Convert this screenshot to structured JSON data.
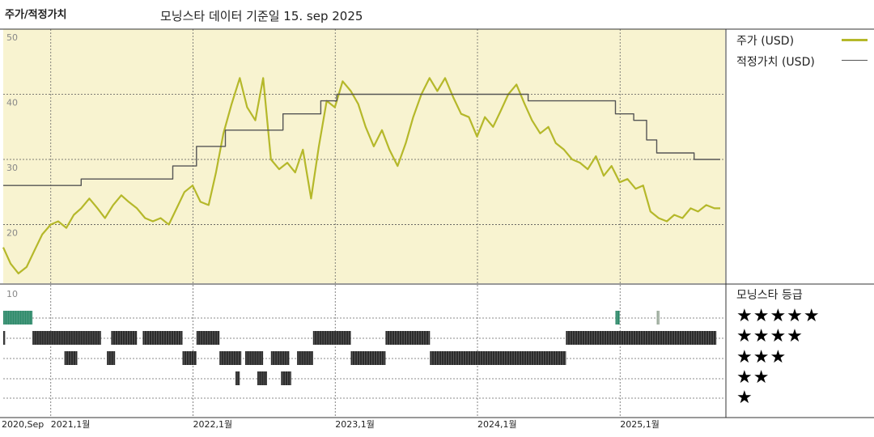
{
  "header": {
    "title": "주가/적정가치",
    "subtitle": "모닝스타 데이터 기준일 15. sep 2025"
  },
  "legend": {
    "price_label": "주가 (USD)",
    "fair_label": "적정가치 (USD)",
    "price_color": "#b5b82a",
    "fair_color": "#555555"
  },
  "rating_panel": {
    "title": "모닝스타 등급",
    "rows": [
      "★★★★★",
      "★★★★",
      "★★★",
      "★★",
      "★"
    ]
  },
  "chart_data": {
    "type": "line",
    "y_ticks": [
      "50",
      "40",
      "30",
      "20"
    ],
    "y_range": [
      11,
      50
    ],
    "x_range": [
      "2020-09-01",
      "2025-09-15"
    ],
    "x_ticks": [
      {
        "date": "2020-09-01",
        "label": "2020,Sep"
      },
      {
        "date": "2021-01-01",
        "label": "2021,1월"
      },
      {
        "date": "2022-01-01",
        "label": "2022,1월"
      },
      {
        "date": "2023-01-01",
        "label": "2023,1월"
      },
      {
        "date": "2024-01-01",
        "label": "2024,1월"
      },
      {
        "date": "2025-01-01",
        "label": "2025,1월"
      }
    ],
    "rating_axis_label": "10",
    "series": [
      {
        "name": "주가 (USD)",
        "points": [
          [
            "2020-09-01",
            16.5
          ],
          [
            "2020-09-20",
            14.0
          ],
          [
            "2020-10-10",
            12.5
          ],
          [
            "2020-10-31",
            13.5
          ],
          [
            "2020-11-20",
            16.0
          ],
          [
            "2020-12-10",
            18.5
          ],
          [
            "2021-01-01",
            20.0
          ],
          [
            "2021-01-20",
            20.5
          ],
          [
            "2021-02-10",
            19.5
          ],
          [
            "2021-03-01",
            21.5
          ],
          [
            "2021-03-20",
            22.5
          ],
          [
            "2021-04-10",
            24.0
          ],
          [
            "2021-05-01",
            22.5
          ],
          [
            "2021-05-20",
            21.0
          ],
          [
            "2021-06-10",
            23.0
          ],
          [
            "2021-07-01",
            24.5
          ],
          [
            "2021-07-20",
            23.5
          ],
          [
            "2021-08-10",
            22.5
          ],
          [
            "2021-08-31",
            21.0
          ],
          [
            "2021-09-20",
            20.5
          ],
          [
            "2021-10-10",
            21.0
          ],
          [
            "2021-10-31",
            20.0
          ],
          [
            "2021-11-20",
            22.5
          ],
          [
            "2021-12-10",
            25.0
          ],
          [
            "2021-12-31",
            26.0
          ],
          [
            "2022-01-20",
            23.5
          ],
          [
            "2022-02-10",
            23.0
          ],
          [
            "2022-03-01",
            28.0
          ],
          [
            "2022-03-20",
            34.0
          ],
          [
            "2022-04-10",
            38.5
          ],
          [
            "2022-05-01",
            42.5
          ],
          [
            "2022-05-20",
            38.0
          ],
          [
            "2022-06-10",
            36.0
          ],
          [
            "2022-06-30",
            42.5
          ],
          [
            "2022-07-20",
            30.0
          ],
          [
            "2022-08-10",
            28.5
          ],
          [
            "2022-08-31",
            29.5
          ],
          [
            "2022-09-20",
            28.0
          ],
          [
            "2022-10-10",
            31.5
          ],
          [
            "2022-10-31",
            24.0
          ],
          [
            "2022-11-20",
            32.0
          ],
          [
            "2022-12-10",
            39.0
          ],
          [
            "2022-12-31",
            38.0
          ],
          [
            "2023-01-20",
            42.0
          ],
          [
            "2023-02-10",
            40.5
          ],
          [
            "2023-03-01",
            38.5
          ],
          [
            "2023-03-20",
            35.0
          ],
          [
            "2023-04-10",
            32.0
          ],
          [
            "2023-05-01",
            34.5
          ],
          [
            "2023-05-20",
            31.5
          ],
          [
            "2023-06-10",
            29.0
          ],
          [
            "2023-07-01",
            32.5
          ],
          [
            "2023-07-20",
            36.5
          ],
          [
            "2023-08-10",
            40.0
          ],
          [
            "2023-08-31",
            42.5
          ],
          [
            "2023-09-20",
            40.5
          ],
          [
            "2023-10-10",
            42.5
          ],
          [
            "2023-10-31",
            39.5
          ],
          [
            "2023-11-20",
            37.0
          ],
          [
            "2023-12-10",
            36.5
          ],
          [
            "2023-12-31",
            33.5
          ],
          [
            "2024-01-20",
            36.5
          ],
          [
            "2024-02-10",
            35.0
          ],
          [
            "2024-03-01",
            37.5
          ],
          [
            "2024-03-20",
            40.0
          ],
          [
            "2024-04-10",
            41.5
          ],
          [
            "2024-05-01",
            38.5
          ],
          [
            "2024-05-20",
            36.0
          ],
          [
            "2024-06-10",
            34.0
          ],
          [
            "2024-07-01",
            35.0
          ],
          [
            "2024-07-20",
            32.5
          ],
          [
            "2024-08-10",
            31.5
          ],
          [
            "2024-08-31",
            30.0
          ],
          [
            "2024-09-20",
            29.5
          ],
          [
            "2024-10-10",
            28.5
          ],
          [
            "2024-10-31",
            30.5
          ],
          [
            "2024-11-20",
            27.5
          ],
          [
            "2024-12-10",
            29.0
          ],
          [
            "2024-12-31",
            26.5
          ],
          [
            "2025-01-20",
            27.0
          ],
          [
            "2025-02-10",
            25.5
          ],
          [
            "2025-03-01",
            26.0
          ],
          [
            "2025-03-20",
            22.0
          ],
          [
            "2025-04-10",
            21.0
          ],
          [
            "2025-05-01",
            20.5
          ],
          [
            "2025-05-20",
            21.5
          ],
          [
            "2025-06-10",
            21.0
          ],
          [
            "2025-07-01",
            22.5
          ],
          [
            "2025-07-20",
            22.0
          ],
          [
            "2025-08-10",
            23.0
          ],
          [
            "2025-08-31",
            22.5
          ],
          [
            "2025-09-15",
            22.5
          ]
        ]
      },
      {
        "name": "적정가치 (USD)",
        "points": [
          [
            "2020-09-01",
            26
          ],
          [
            "2021-03-20",
            26
          ],
          [
            "2021-03-20",
            27
          ],
          [
            "2021-11-10",
            27
          ],
          [
            "2021-11-10",
            29
          ],
          [
            "2022-01-10",
            29
          ],
          [
            "2022-01-10",
            32
          ],
          [
            "2022-03-25",
            32
          ],
          [
            "2022-03-25",
            34.5
          ],
          [
            "2022-08-20",
            34.5
          ],
          [
            "2022-08-20",
            37
          ],
          [
            "2022-11-25",
            37
          ],
          [
            "2022-11-25",
            39
          ],
          [
            "2023-01-05",
            39
          ],
          [
            "2023-01-05",
            40
          ],
          [
            "2024-05-10",
            40
          ],
          [
            "2024-05-10",
            39
          ],
          [
            "2024-12-20",
            39
          ],
          [
            "2024-12-20",
            37
          ],
          [
            "2025-02-05",
            37
          ],
          [
            "2025-02-05",
            36
          ],
          [
            "2025-03-10",
            36
          ],
          [
            "2025-03-10",
            33
          ],
          [
            "2025-04-05",
            33
          ],
          [
            "2025-04-05",
            31
          ],
          [
            "2025-07-10",
            31
          ],
          [
            "2025-07-10",
            30
          ],
          [
            "2025-09-15",
            30
          ]
        ]
      }
    ],
    "rating_segments": [
      {
        "stars": 5,
        "from": "2020-09-01",
        "to": "2020-11-15",
        "color": "#2e8a6a"
      },
      {
        "stars": 5,
        "from": "2024-12-20",
        "to": "2024-12-31",
        "color": "#2e8a6a"
      },
      {
        "stars": 5,
        "from": "2025-04-05",
        "to": "2025-04-12",
        "color": "#9aaa9a"
      },
      {
        "stars": 4,
        "from": "2020-09-01",
        "to": "2020-09-06"
      },
      {
        "stars": 4,
        "from": "2020-11-15",
        "to": "2021-05-10"
      },
      {
        "stars": 4,
        "from": "2021-06-05",
        "to": "2021-08-10"
      },
      {
        "stars": 4,
        "from": "2021-08-25",
        "to": "2021-12-05"
      },
      {
        "stars": 4,
        "from": "2022-01-10",
        "to": "2022-03-10"
      },
      {
        "stars": 4,
        "from": "2022-11-05",
        "to": "2023-02-10"
      },
      {
        "stars": 4,
        "from": "2023-05-10",
        "to": "2023-09-01"
      },
      {
        "stars": 4,
        "from": "2024-08-15",
        "to": "2025-09-05"
      },
      {
        "stars": 3,
        "from": "2021-02-05",
        "to": "2021-03-10"
      },
      {
        "stars": 3,
        "from": "2021-05-25",
        "to": "2021-06-15"
      },
      {
        "stars": 3,
        "from": "2021-12-05",
        "to": "2022-01-10"
      },
      {
        "stars": 3,
        "from": "2022-03-10",
        "to": "2022-05-05"
      },
      {
        "stars": 3,
        "from": "2022-05-15",
        "to": "2022-06-30"
      },
      {
        "stars": 3,
        "from": "2022-07-20",
        "to": "2022-09-05"
      },
      {
        "stars": 3,
        "from": "2022-09-25",
        "to": "2022-11-05"
      },
      {
        "stars": 3,
        "from": "2023-02-10",
        "to": "2023-05-10"
      },
      {
        "stars": 3,
        "from": "2023-09-01",
        "to": "2024-08-15"
      },
      {
        "stars": 2,
        "from": "2022-04-20",
        "to": "2022-05-01"
      },
      {
        "stars": 2,
        "from": "2022-06-15",
        "to": "2022-07-10"
      },
      {
        "stars": 2,
        "from": "2022-08-15",
        "to": "2022-09-10"
      }
    ]
  }
}
